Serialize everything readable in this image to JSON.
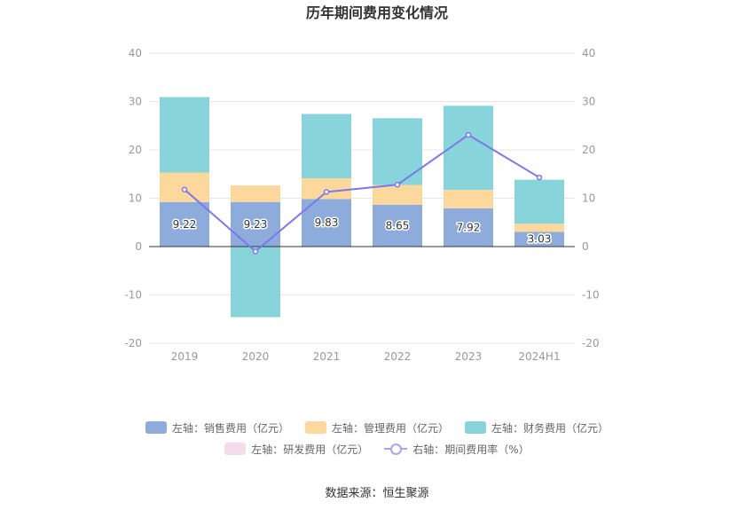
{
  "chart_data": {
    "type": "bar",
    "title": "历年期间费用变化情况",
    "categories": [
      "2019",
      "2020",
      "2021",
      "2022",
      "2023",
      "2024H1"
    ],
    "ylim_left": [
      -20,
      40
    ],
    "ylim_right": [
      -20,
      40
    ],
    "yticks": [
      "40",
      "30",
      "20",
      "10",
      "0",
      "-10",
      "-20"
    ],
    "stacked": true,
    "series": [
      {
        "name": "左轴：销售费用（亿元）",
        "axis": "left",
        "color": "#8eacdb",
        "values": [
          9.22,
          9.23,
          9.83,
          8.65,
          7.92,
          3.03
        ],
        "labels": [
          "9.22",
          "9.23",
          "9.83",
          "8.65",
          "7.92",
          "3.03"
        ]
      },
      {
        "name": "左轴：管理费用（亿元）",
        "axis": "left",
        "color": "#fcd89c",
        "values": [
          6.1,
          3.4,
          4.3,
          4.1,
          3.8,
          1.7
        ]
      },
      {
        "name": "左轴：财务费用（亿元）",
        "axis": "left",
        "color": "#87d5da",
        "values": [
          15.6,
          -14.6,
          13.3,
          13.8,
          17.4,
          9.1
        ]
      },
      {
        "name": "左轴：研发费用（亿元）",
        "axis": "left",
        "color": "#f3dcec",
        "values": [
          0,
          0,
          0,
          0,
          0,
          0
        ]
      },
      {
        "name": "右轴：期间费用率（%）",
        "axis": "right",
        "type": "line",
        "color": "#7b78ef",
        "values": [
          11.8,
          -1.0,
          11.3,
          12.8,
          23.1,
          14.3
        ]
      }
    ],
    "grid": true,
    "legend_position": "bottom"
  },
  "source": "数据来源：恒生聚源"
}
